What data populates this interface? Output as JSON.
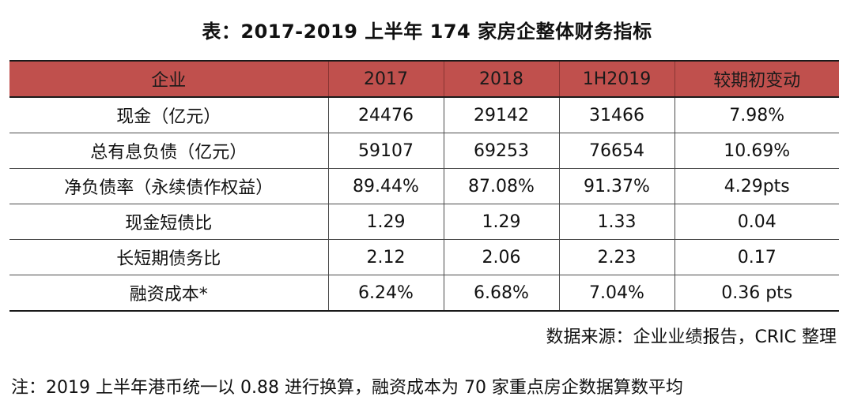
{
  "title": "表：2017-2019 上半年 174 家房企整体财务指标",
  "table": {
    "headers": [
      "企业",
      "2017",
      "2018",
      "1H2019",
      "较期初变动"
    ],
    "rows": [
      [
        "现金（亿元）",
        "24476",
        "29142",
        "31466",
        "7.98%"
      ],
      [
        "总有息负债（亿元）",
        "59107",
        "69253",
        "76654",
        "10.69%"
      ],
      [
        "净负债率（永续债作权益）",
        "89.44%",
        "87.08%",
        "91.37%",
        "4.29pts"
      ],
      [
        "现金短债比",
        "1.29",
        "1.29",
        "1.33",
        "0.04"
      ],
      [
        "长短期债务比",
        "2.12",
        "2.06",
        "2.23",
        "0.17"
      ],
      [
        "融资成本*",
        "6.24%",
        "6.68%",
        "7.04%",
        "0.36 pts"
      ]
    ]
  },
  "source": "数据来源：企业业绩报告，CRIC 整理",
  "note": "注：2019 上半年港币统一以 0.88 进行换算，融资成本为 70 家重点房企数据算数平均",
  "colors": {
    "header_bg": "#c0504d",
    "rule": "#1a1a1a"
  }
}
